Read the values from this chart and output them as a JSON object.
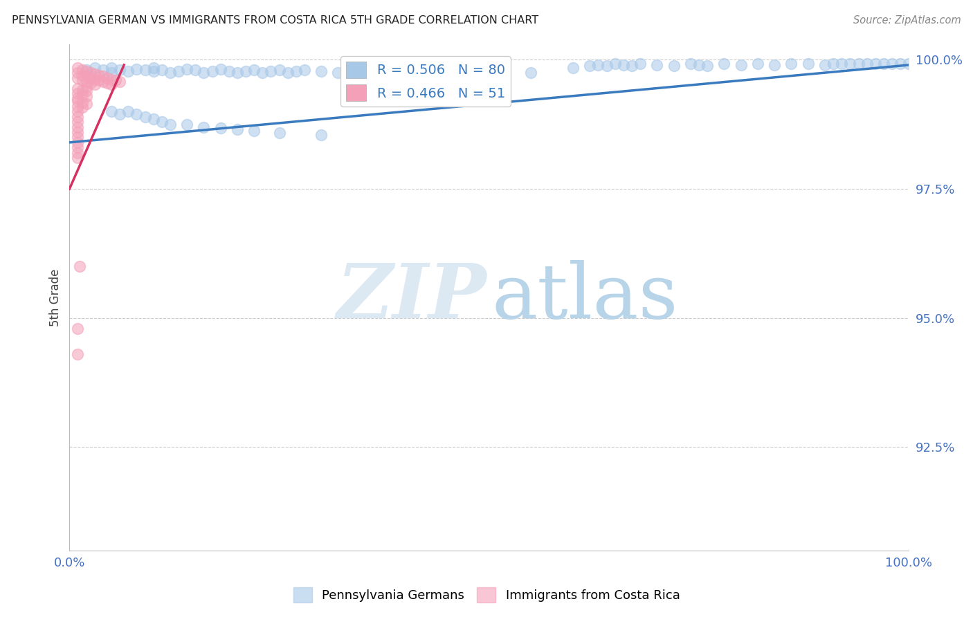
{
  "title": "PENNSYLVANIA GERMAN VS IMMIGRANTS FROM COSTA RICA 5TH GRADE CORRELATION CHART",
  "source": "Source: ZipAtlas.com",
  "ylabel": "5th Grade",
  "xlim": [
    0.0,
    1.0
  ],
  "ylim": [
    0.905,
    1.003
  ],
  "yticks": [
    0.925,
    0.95,
    0.975,
    1.0
  ],
  "ytick_labels": [
    "92.5%",
    "95.0%",
    "97.5%",
    "100.0%"
  ],
  "xticks": [
    0.0,
    0.2,
    0.4,
    0.6,
    0.8,
    1.0
  ],
  "xtick_labels": [
    "0.0%",
    "",
    "",
    "",
    "",
    "100.0%"
  ],
  "blue_color": "#a8c8e8",
  "pink_color": "#f4a0b8",
  "blue_line_color": "#3a7abf",
  "pink_line_color": "#d43060",
  "title_color": "#222222",
  "axis_label_color": "#444444",
  "tick_label_color": "#4472c4",
  "grid_color": "#cccccc",
  "blue_scatter_x": [
    0.02,
    0.03,
    0.04,
    0.05,
    0.05,
    0.06,
    0.07,
    0.08,
    0.09,
    0.1,
    0.1,
    0.11,
    0.12,
    0.13,
    0.14,
    0.15,
    0.16,
    0.17,
    0.18,
    0.19,
    0.2,
    0.21,
    0.22,
    0.23,
    0.24,
    0.25,
    0.26,
    0.27,
    0.28,
    0.3,
    0.32,
    0.35,
    0.38,
    0.4,
    0.42,
    0.5,
    0.55,
    0.6,
    0.62,
    0.63,
    0.64,
    0.65,
    0.66,
    0.67,
    0.68,
    0.7,
    0.72,
    0.74,
    0.75,
    0.76,
    0.78,
    0.8,
    0.82,
    0.84,
    0.86,
    0.88,
    0.9,
    0.91,
    0.92,
    0.93,
    0.94,
    0.95,
    0.96,
    0.97,
    0.98,
    0.99,
    1.0,
    0.05,
    0.06,
    0.07,
    0.08,
    0.09,
    0.1,
    0.11,
    0.12,
    0.14,
    0.16,
    0.18,
    0.2,
    0.22,
    0.25,
    0.3
  ],
  "blue_scatter_y": [
    0.998,
    0.9985,
    0.998,
    0.9985,
    0.9975,
    0.998,
    0.9978,
    0.9982,
    0.998,
    0.9978,
    0.9985,
    0.998,
    0.9975,
    0.9978,
    0.9982,
    0.998,
    0.9975,
    0.9978,
    0.9982,
    0.9978,
    0.9975,
    0.9978,
    0.998,
    0.9975,
    0.9978,
    0.998,
    0.9975,
    0.9978,
    0.998,
    0.9978,
    0.9975,
    0.9978,
    0.998,
    0.9978,
    0.9975,
    0.998,
    0.9975,
    0.9985,
    0.9988,
    0.999,
    0.9988,
    0.9992,
    0.999,
    0.9988,
    0.9992,
    0.999,
    0.9988,
    0.9992,
    0.999,
    0.9988,
    0.9992,
    0.999,
    0.9992,
    0.999,
    0.9992,
    0.9992,
    0.999,
    0.9993,
    0.9992,
    0.9993,
    0.9992,
    0.9993,
    0.9992,
    0.9993,
    0.9992,
    0.9993,
    0.9993,
    0.99,
    0.9895,
    0.99,
    0.9895,
    0.989,
    0.9885,
    0.988,
    0.9875,
    0.9875,
    0.987,
    0.9868,
    0.9865,
    0.9862,
    0.9858,
    0.9855
  ],
  "pink_scatter_x": [
    0.01,
    0.01,
    0.01,
    0.015,
    0.015,
    0.015,
    0.02,
    0.02,
    0.02,
    0.02,
    0.025,
    0.025,
    0.025,
    0.03,
    0.03,
    0.03,
    0.035,
    0.035,
    0.04,
    0.04,
    0.045,
    0.045,
    0.05,
    0.05,
    0.055,
    0.06,
    0.01,
    0.01,
    0.01,
    0.015,
    0.015,
    0.02,
    0.02,
    0.01,
    0.01,
    0.01,
    0.015,
    0.015,
    0.02,
    0.01,
    0.01,
    0.01,
    0.01,
    0.01,
    0.01,
    0.01,
    0.01,
    0.01,
    0.01,
    0.01,
    0.012
  ],
  "pink_scatter_y": [
    0.9985,
    0.9975,
    0.9965,
    0.998,
    0.997,
    0.996,
    0.9978,
    0.9968,
    0.9958,
    0.9948,
    0.9975,
    0.9965,
    0.9955,
    0.9972,
    0.9962,
    0.9952,
    0.997,
    0.996,
    0.9968,
    0.9958,
    0.9965,
    0.9955,
    0.9962,
    0.9952,
    0.996,
    0.9958,
    0.9945,
    0.9935,
    0.9925,
    0.9942,
    0.9932,
    0.994,
    0.993,
    0.992,
    0.991,
    0.99,
    0.9918,
    0.9908,
    0.9915,
    0.989,
    0.988,
    0.987,
    0.986,
    0.985,
    0.984,
    0.983,
    0.982,
    0.981,
    0.948,
    0.943,
    0.96
  ],
  "blue_line_x": [
    0.0,
    1.0
  ],
  "blue_line_y": [
    0.984,
    0.999
  ],
  "pink_line_x": [
    0.0,
    0.065
  ],
  "pink_line_y": [
    0.975,
    0.999
  ]
}
